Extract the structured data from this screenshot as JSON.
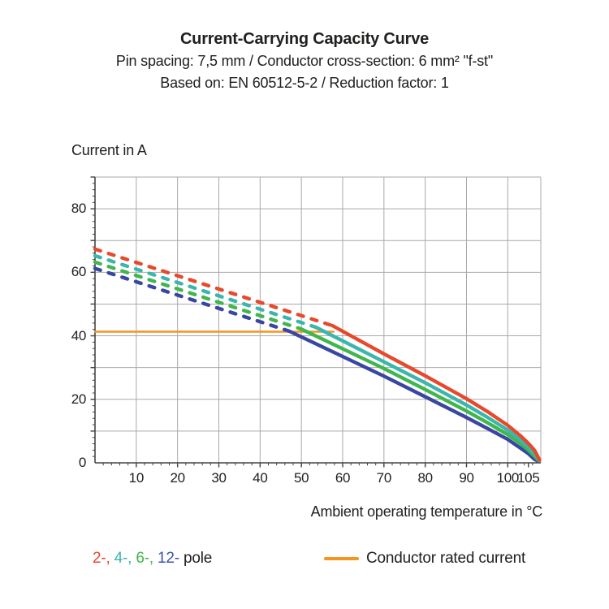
{
  "header": {
    "title": "Current-Carrying Capacity Curve",
    "subtitle1": "Pin spacing: 7,5 mm / Conductor cross-section: 6 mm² \"f-st\"",
    "subtitle2": "Based on: EN 60512-5-2 / Reduction factor: 1"
  },
  "legend": {
    "pole_items": [
      {
        "label": "2-,",
        "color": "#e6492b"
      },
      {
        "label": "4-,",
        "color": "#3ab6ae"
      },
      {
        "label": "6-,",
        "color": "#41b64c"
      },
      {
        "label": "12-",
        "color": "#3b55a9"
      }
    ],
    "pole_suffix": " pole",
    "rated_label": "Conductor rated current",
    "rated_color": "#f6941e"
  },
  "chart_data": {
    "type": "line",
    "title": "Current-Carrying Capacity Curve",
    "xlabel": "Ambient operating temperature in °C",
    "ylabel": "Current in A",
    "xlim": [
      0,
      108
    ],
    "ylim": [
      0,
      90
    ],
    "grid": {
      "x_step": 10,
      "y_step": 10,
      "color": "#a9a9a9",
      "axis_color": "#444444"
    },
    "x_ticks": [
      10,
      20,
      30,
      40,
      50,
      60,
      70,
      80,
      90,
      100,
      105
    ],
    "y_ticks": [
      0,
      20,
      40,
      60,
      80
    ],
    "x_extra_major_ticks": [
      105
    ],
    "legend_note": "dashed = derating curve above conductor rated current; solid = permissible current",
    "series": [
      {
        "name": "Conductor rated current",
        "color": "#f6941e",
        "width": 2.4,
        "segments": [
          {
            "style": "solid",
            "points": [
              [
                0,
                41.3
              ],
              [
                57.8,
                41.3
              ]
            ]
          }
        ]
      },
      {
        "name": "12-pole",
        "color": "#3947a3",
        "width": 4.4,
        "segments": [
          {
            "style": "dashed",
            "points": [
              [
                0,
                61.2
              ],
              [
                47,
                41.5
              ]
            ]
          },
          {
            "style": "solid",
            "points": [
              [
                47,
                41.5
              ],
              [
                70,
                27.3
              ],
              [
                80,
                20.8
              ],
              [
                90,
                14.3
              ],
              [
                95,
                10.9
              ],
              [
                100,
                7.4
              ],
              [
                103,
                4.7
              ],
              [
                105,
                2.9
              ],
              [
                106.5,
                1.1
              ],
              [
                107.4,
                0.5
              ]
            ]
          }
        ]
      },
      {
        "name": "6-pole",
        "color": "#41b64c",
        "width": 4.4,
        "segments": [
          {
            "style": "dashed",
            "points": [
              [
                0,
                63.2
              ],
              [
                50,
                42.1
              ]
            ]
          },
          {
            "style": "solid",
            "points": [
              [
                50,
                42.1
              ],
              [
                70,
                29.7
              ],
              [
                80,
                23.1
              ],
              [
                90,
                16.3
              ],
              [
                95,
                12.7
              ],
              [
                100,
                8.9
              ],
              [
                103,
                6.1
              ],
              [
                105,
                4.0
              ],
              [
                106.8,
                1.7
              ],
              [
                107.5,
                0.7
              ]
            ]
          }
        ]
      },
      {
        "name": "4-pole",
        "color": "#3ab6ae",
        "width": 4.4,
        "segments": [
          {
            "style": "dashed",
            "points": [
              [
                0,
                65.2
              ],
              [
                53.5,
                42.7
              ]
            ]
          },
          {
            "style": "solid",
            "points": [
              [
                53.5,
                42.7
              ],
              [
                70,
                31.8
              ],
              [
                80,
                25.2
              ],
              [
                90,
                18.2
              ],
              [
                95,
                14.4
              ],
              [
                100,
                10.3
              ],
              [
                103,
                7.2
              ],
              [
                105,
                4.9
              ],
              [
                106.8,
                2.4
              ],
              [
                107.6,
                0.8
              ]
            ]
          }
        ]
      },
      {
        "name": "2-pole",
        "color": "#e6492b",
        "width": 4.4,
        "segments": [
          {
            "style": "dashed",
            "points": [
              [
                0,
                67.3
              ],
              [
                57.5,
                43.2
              ]
            ]
          },
          {
            "style": "solid",
            "points": [
              [
                57.5,
                43.2
              ],
              [
                70,
                34.3
              ],
              [
                80,
                27.4
              ],
              [
                90,
                20.2
              ],
              [
                95,
                16.2
              ],
              [
                100,
                11.8
              ],
              [
                103,
                8.6
              ],
              [
                105,
                6.1
              ],
              [
                106.5,
                3.9
              ],
              [
                107.7,
                0.9
              ]
            ]
          }
        ]
      }
    ]
  }
}
